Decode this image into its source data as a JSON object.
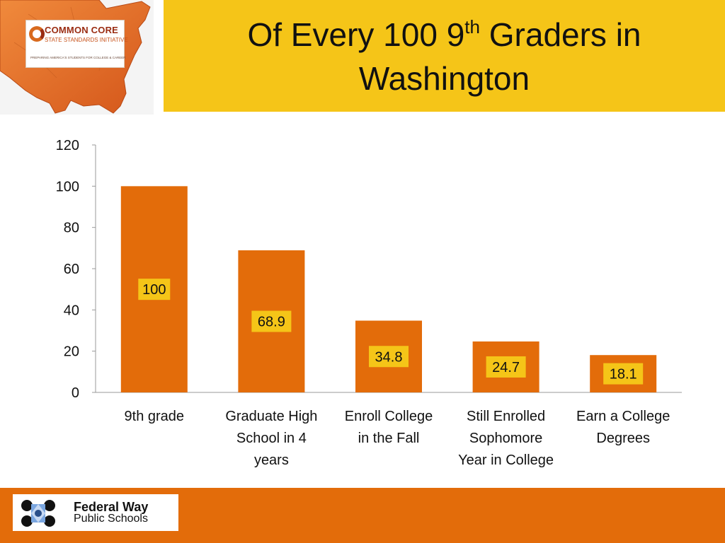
{
  "logos": {
    "common_core_name": "COMMON CORE",
    "common_core_sub": "STATE STANDARDS INITIATIVE",
    "common_core_tag": "PREPARING AMERICA'S STUDENTS FOR COLLEGE & CAREER",
    "district_name": "Federal Way",
    "district_sub": "Public Schools"
  },
  "title": {
    "part1": "Of Every 100 9",
    "sup": "th",
    "part2": " Graders in",
    "line2": "Washington"
  },
  "colors": {
    "bar": "#e36c0a",
    "label_bg": "#f5c518",
    "title_bg": "#f5c518",
    "footer": "#e36c0a"
  },
  "chart_data": {
    "type": "bar",
    "categories": [
      "9th grade",
      "Graduate High School in 4 years",
      "Enroll College in the Fall",
      "Still Enrolled Sophomore Year in College",
      "Earn a College Degrees"
    ],
    "category_lines": [
      [
        "9th grade"
      ],
      [
        "Graduate High",
        "School in 4",
        "years"
      ],
      [
        "Enroll College",
        "in the Fall"
      ],
      [
        "Still Enrolled",
        "Sophomore",
        "Year in College"
      ],
      [
        "Earn a College",
        "Degrees"
      ]
    ],
    "values": [
      100,
      68.9,
      34.8,
      24.7,
      18.1
    ],
    "data_labels": [
      "100",
      "68.9",
      "34.8",
      "24.7",
      "18.1"
    ],
    "ylim": [
      0,
      120
    ],
    "yticks": [
      0,
      20,
      40,
      60,
      80,
      100,
      120
    ],
    "xlabel": "",
    "ylabel": "",
    "grid": false,
    "legend": "none"
  }
}
